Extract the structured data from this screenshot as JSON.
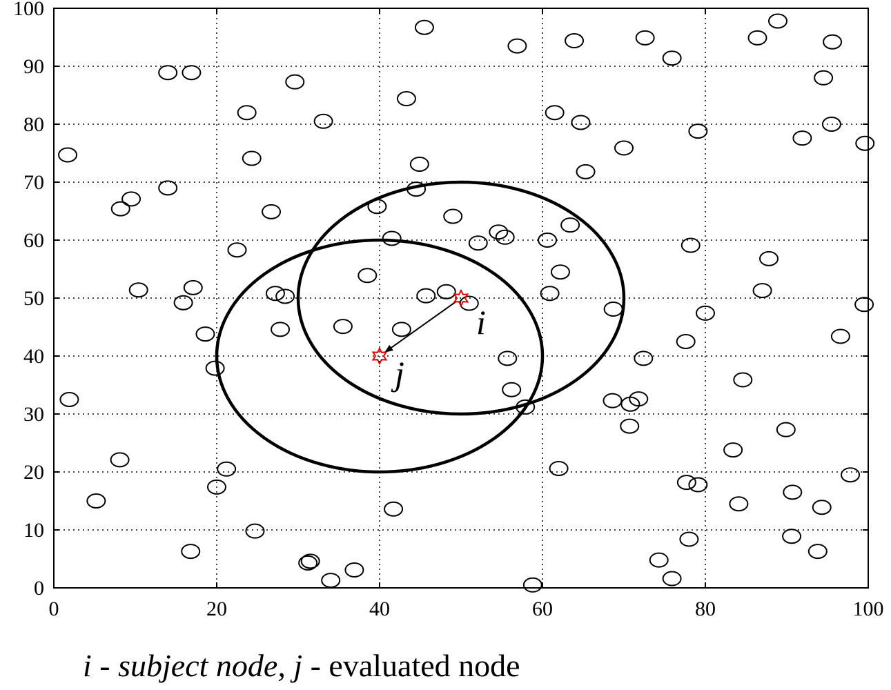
{
  "chart_data": {
    "type": "scatter",
    "title": "",
    "xlabel": "",
    "ylabel": "",
    "xlim": [
      0,
      100
    ],
    "ylim": [
      0,
      100
    ],
    "xticks": [
      "0",
      "20",
      "40",
      "60",
      "80",
      "100"
    ],
    "yticks": [
      "0",
      "10",
      "20",
      "30",
      "40",
      "50",
      "60",
      "70",
      "80",
      "90",
      "100"
    ],
    "grid": true,
    "nodes": [
      [
        45.5,
        96.7
      ],
      [
        56.9,
        93.5
      ],
      [
        63.9,
        94.4
      ],
      [
        72.6,
        94.9
      ],
      [
        75.9,
        91.4
      ],
      [
        86.4,
        94.9
      ],
      [
        88.9,
        97.8
      ],
      [
        95.6,
        94.2
      ],
      [
        14,
        88.9
      ],
      [
        16.9,
        88.9
      ],
      [
        29.6,
        87.3
      ],
      [
        94.5,
        88
      ],
      [
        43.3,
        84.4
      ],
      [
        23.7,
        82
      ],
      [
        33.1,
        80.5
      ],
      [
        61.5,
        82
      ],
      [
        64.7,
        80.3
      ],
      [
        79.1,
        78.8
      ],
      [
        95.5,
        80
      ],
      [
        91.9,
        77.6
      ],
      [
        99.6,
        76.7
      ],
      [
        1.7,
        74.7
      ],
      [
        24.3,
        74.1
      ],
      [
        70,
        75.9
      ],
      [
        44.9,
        73.1
      ],
      [
        65.3,
        71.8
      ],
      [
        14,
        69
      ],
      [
        44.5,
        68.8
      ],
      [
        9.5,
        67.1
      ],
      [
        8.2,
        65.4
      ],
      [
        26.7,
        64.9
      ],
      [
        39.7,
        65.8
      ],
      [
        49,
        64.1
      ],
      [
        63.4,
        62.6
      ],
      [
        54.6,
        61.4
      ],
      [
        55.4,
        60.5
      ],
      [
        41.5,
        60.3
      ],
      [
        52.1,
        59.5
      ],
      [
        60.6,
        60
      ],
      [
        78.2,
        59.1
      ],
      [
        22.5,
        58.3
      ],
      [
        87.8,
        56.8
      ],
      [
        38.5,
        53.9
      ],
      [
        62.2,
        54.5
      ],
      [
        10.4,
        51.4
      ],
      [
        17.1,
        51.8
      ],
      [
        27.2,
        50.8
      ],
      [
        28.4,
        50.3
      ],
      [
        45.7,
        50.4
      ],
      [
        48.2,
        51.1
      ],
      [
        51,
        49.1
      ],
      [
        60.9,
        50.8
      ],
      [
        87,
        51.3
      ],
      [
        15.9,
        49.2
      ],
      [
        68.7,
        48.1
      ],
      [
        80,
        47.4
      ],
      [
        99.5,
        48.9
      ],
      [
        18.6,
        43.8
      ],
      [
        27.8,
        44.6
      ],
      [
        35.5,
        45.1
      ],
      [
        42.7,
        44.6
      ],
      [
        77.6,
        42.5
      ],
      [
        96.6,
        43.4
      ],
      [
        19.8,
        37.9
      ],
      [
        55.7,
        39.6
      ],
      [
        72.4,
        39.6
      ],
      [
        84.6,
        35.9
      ],
      [
        1.9,
        32.5
      ],
      [
        56.2,
        34.2
      ],
      [
        57.9,
        31.2
      ],
      [
        68.6,
        32.3
      ],
      [
        70.8,
        31.7
      ],
      [
        71.8,
        32.6
      ],
      [
        70.7,
        27.9
      ],
      [
        89.9,
        27.3
      ],
      [
        8.1,
        22.1
      ],
      [
        21.2,
        20.5
      ],
      [
        62,
        20.6
      ],
      [
        83.4,
        23.8
      ],
      [
        97.8,
        19.5
      ],
      [
        5.2,
        15
      ],
      [
        20,
        17.4
      ],
      [
        77.7,
        18.2
      ],
      [
        79.1,
        17.8
      ],
      [
        90.7,
        16.5
      ],
      [
        41.7,
        13.6
      ],
      [
        84.1,
        14.5
      ],
      [
        94.3,
        13.9
      ],
      [
        24.7,
        9.8
      ],
      [
        90.6,
        8.9
      ],
      [
        16.8,
        6.3
      ],
      [
        31.5,
        4.6
      ],
      [
        31.2,
        4.3
      ],
      [
        74.3,
        4.8
      ],
      [
        78,
        8.4
      ],
      [
        93.8,
        6.3
      ],
      [
        36.9,
        3.1
      ],
      [
        34,
        1.3
      ],
      [
        75.9,
        1.6
      ],
      [
        58.8,
        0.5
      ]
    ],
    "ranges": [
      {
        "center": [
          50,
          50
        ],
        "radius": 20
      },
      {
        "center": [
          40,
          40
        ],
        "radius": 20
      }
    ],
    "subject_node": {
      "label": "i",
      "x": 50,
      "y": 50
    },
    "evaluated_node": {
      "label": "j",
      "x": 40,
      "y": 40
    },
    "caption": {
      "i_symbol": "i",
      "i_text": " - subject node, ",
      "j_symbol": "j",
      "j_text": " - evaluated node"
    }
  }
}
